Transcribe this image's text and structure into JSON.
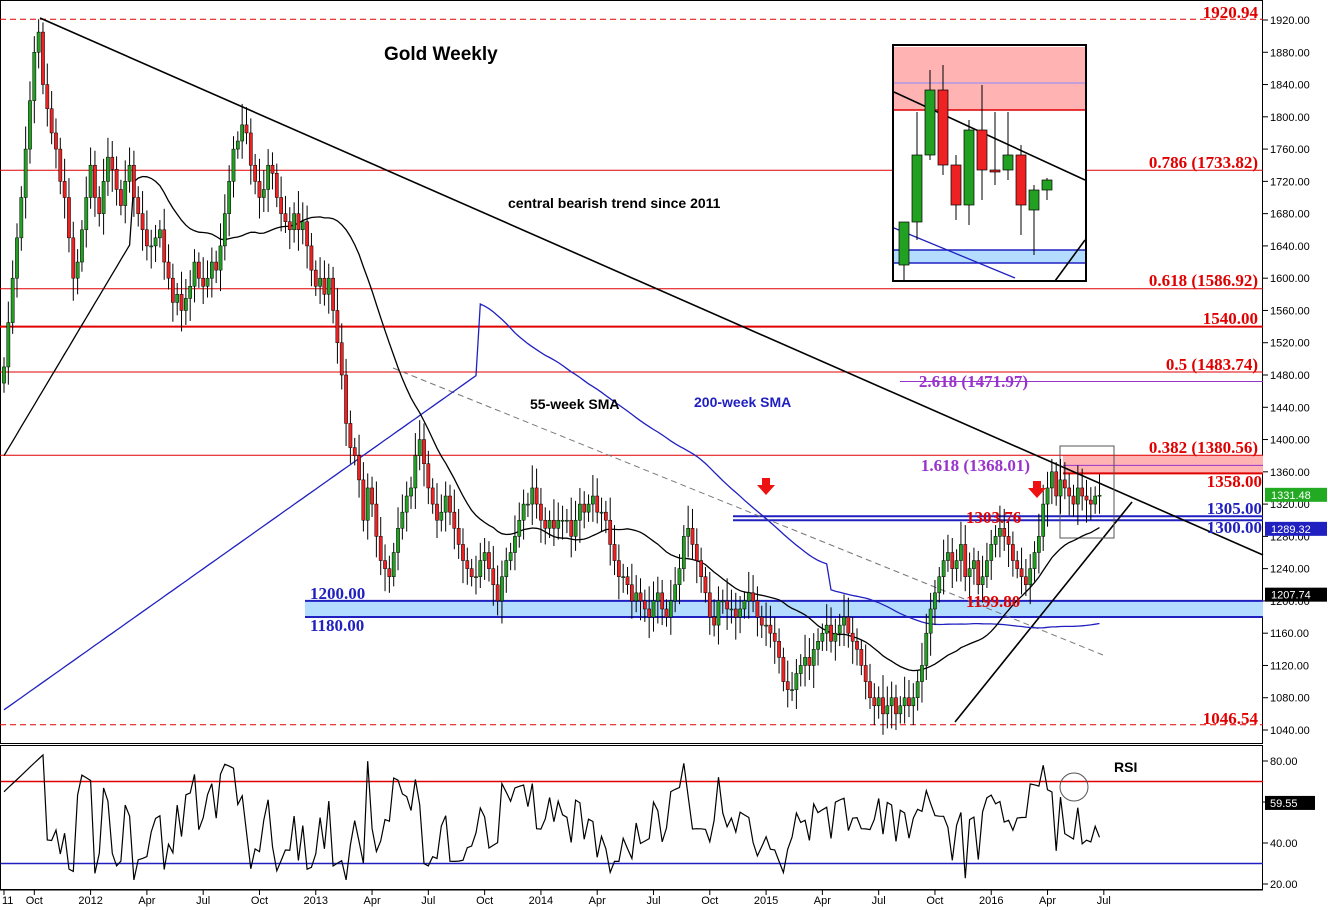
{
  "chart_data": [
    {
      "type": "candlestick",
      "title": "Gold Weekly",
      "y_axis_ticks": [
        1040,
        1080,
        1120,
        1160,
        1200,
        1240,
        1280,
        1320,
        1360,
        1400,
        1440,
        1480,
        1520,
        1560,
        1600,
        1640,
        1680,
        1720,
        1760,
        1800,
        1840,
        1880,
        1920
      ],
      "y_axis_tick_labels": [
        "1040.00",
        "1080.00",
        "1120.00",
        "1160.00",
        "1200.00",
        "1240.00",
        "1280.00",
        "1320.00",
        "1360.00",
        "1400.00",
        "1440.00",
        "1480.00",
        "1520.00",
        "1560.00",
        "1600.00",
        "1640.00",
        "1680.00",
        "1720.00",
        "1760.00",
        "1800.00",
        "1840.00",
        "1880.00",
        "1920.00"
      ],
      "ylim": [
        1022,
        1930
      ],
      "x_axis_labels": [
        "11",
        "Oct",
        "2012",
        "Apr",
        "Jul",
        "Oct",
        "2013",
        "Apr",
        "Jul",
        "Oct",
        "2014",
        "Apr",
        "Jul",
        "Oct",
        "2015",
        "Apr",
        "Jul",
        "Oct",
        "2016",
        "Apr",
        "Jul"
      ],
      "x_axis_label_offsets_weeks": [
        0,
        7,
        20,
        33,
        46,
        59,
        72,
        85,
        98,
        111,
        124,
        137,
        150,
        163,
        176,
        189,
        202,
        215,
        228,
        241,
        254
      ],
      "closes": [
        1490,
        1545,
        1600,
        1650,
        1700,
        1760,
        1820,
        1880,
        1905,
        1840,
        1810,
        1780,
        1760,
        1720,
        1700,
        1650,
        1600,
        1620,
        1660,
        1700,
        1740,
        1700,
        1680,
        1720,
        1750,
        1735,
        1710,
        1690,
        1720,
        1740,
        1700,
        1680,
        1660,
        1640,
        1640,
        1650,
        1660,
        1620,
        1600,
        1570,
        1580,
        1560,
        1575,
        1590,
        1620,
        1600,
        1590,
        1600,
        1620,
        1610,
        1640,
        1680,
        1720,
        1760,
        1770,
        1790,
        1780,
        1740,
        1720,
        1700,
        1710,
        1740,
        1730,
        1700,
        1680,
        1670,
        1660,
        1680,
        1660,
        1670,
        1640,
        1610,
        1590,
        1600,
        1580,
        1600,
        1560,
        1520,
        1480,
        1420,
        1390,
        1380,
        1350,
        1300,
        1340,
        1320,
        1280,
        1250,
        1240,
        1230,
        1260,
        1290,
        1310,
        1330,
        1340,
        1380,
        1400,
        1370,
        1340,
        1320,
        1300,
        1310,
        1330,
        1310,
        1290,
        1270,
        1250,
        1240,
        1230,
        1230,
        1250,
        1260,
        1240,
        1220,
        1200,
        1230,
        1250,
        1260,
        1280,
        1300,
        1320,
        1320,
        1340,
        1320,
        1300,
        1290,
        1300,
        1290,
        1300,
        1300,
        1300,
        1280,
        1300,
        1320,
        1310,
        1320,
        1330,
        1310,
        1310,
        1300,
        1270,
        1250,
        1230,
        1230,
        1220,
        1200,
        1210,
        1200,
        1190,
        1180,
        1200,
        1210,
        1190,
        1180,
        1200,
        1220,
        1240,
        1280,
        1290,
        1270,
        1250,
        1230,
        1210,
        1180,
        1170,
        1200,
        1200,
        1190,
        1190,
        1180,
        1190,
        1200,
        1210,
        1200,
        1180,
        1170,
        1170,
        1160,
        1150,
        1130,
        1100,
        1090,
        1090,
        1110,
        1120,
        1130,
        1120,
        1140,
        1150,
        1160,
        1170,
        1150,
        1160,
        1170,
        1180,
        1160,
        1150,
        1140,
        1120,
        1100,
        1080,
        1070,
        1080,
        1060,
        1070,
        1080,
        1060,
        1070,
        1080,
        1070,
        1080,
        1100,
        1120,
        1160,
        1190,
        1210,
        1230,
        1250,
        1260,
        1240,
        1250,
        1270,
        1230,
        1240,
        1250,
        1220,
        1230,
        1250,
        1270,
        1280,
        1290,
        1280,
        1270,
        1250,
        1240,
        1230,
        1220,
        1240,
        1260,
        1280,
        1320,
        1340,
        1360,
        1330,
        1350,
        1340,
        1330,
        1320,
        1340,
        1330,
        1325,
        1320,
        1330,
        1331
      ],
      "annotations": {
        "trend": "central bearish trend since 2011",
        "sma55": "55-week SMA",
        "sma200": "200-week SMA",
        "low1": "1303.76",
        "low2": "1199.80"
      },
      "levels": [
        {
          "label": "1920.94",
          "value": 1920.94,
          "color": "#e00000"
        },
        {
          "label": "0.786 (1733.82)",
          "value": 1733.82,
          "color": "#e00000"
        },
        {
          "label": "0.618 (1586.92)",
          "value": 1586.92,
          "color": "#e00000"
        },
        {
          "label": "1540.00",
          "value": 1540.0,
          "color": "#e00000"
        },
        {
          "label": "0.5 (1483.74)",
          "value": 1483.74,
          "color": "#e00000"
        },
        {
          "label": "2.618 (1471.97)",
          "value": 1471.97,
          "color": "#9933cc"
        },
        {
          "label": "0.382 (1380.56)",
          "value": 1380.56,
          "color": "#e00000"
        },
        {
          "label": "1.618 (1368.01)",
          "value": 1368.01,
          "color": "#9933cc"
        },
        {
          "label": "1358.00",
          "value": 1358.0,
          "color": "#e00000"
        },
        {
          "label": "1305.00",
          "value": 1305.0,
          "color": "#2020c0"
        },
        {
          "label": "1300.00",
          "value": 1300.0,
          "color": "#2020c0"
        },
        {
          "label": "1200.00",
          "value": 1200.0,
          "color": "#2020c0"
        },
        {
          "label": "1180.00",
          "value": 1180.0,
          "color": "#2020c0"
        },
        {
          "label": "1046.54",
          "value": 1046.54,
          "color": "#e00000"
        }
      ],
      "price_tags": [
        {
          "label": "1331.48",
          "value": 1331.48,
          "color": "#22aa22"
        },
        {
          "label": "1289.32",
          "value": 1289.32,
          "color": "#2020c0"
        },
        {
          "label": "1207.74",
          "value": 1207.74,
          "color": "#000000"
        }
      ]
    },
    {
      "type": "line",
      "title": "RSI",
      "y_axis_ticks": [
        20,
        40,
        60,
        80
      ],
      "y_axis_tick_labels": [
        "20.00",
        "40.00",
        "60.00",
        "80.00"
      ],
      "ylim": [
        18,
        88
      ],
      "overbought": 70,
      "oversold": 30,
      "last_value_label": "59.55",
      "last_value": 59.55
    }
  ],
  "colors": {
    "up": "#22a022",
    "down": "#ee2222",
    "sma55": "#000000",
    "sma200": "#2020c0",
    "zone_red": "#ffb3b3",
    "zone_blue": "#b3dcff"
  }
}
